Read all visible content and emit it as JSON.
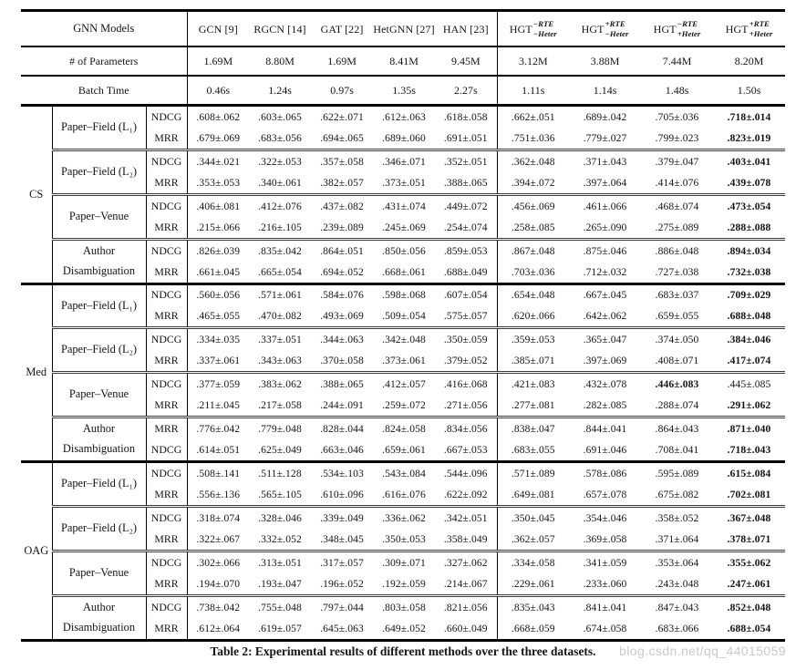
{
  "caption": "Table 2: Experimental results of different methods over the three datasets.",
  "watermark": "blog.csdn.net/qq_44015059",
  "table": {
    "corner_labels": {
      "models": "GNN Models",
      "params": "# of Parameters",
      "batch": "Batch Time"
    },
    "models": [
      {
        "label": "GCN [9]",
        "params": "1.69M",
        "batch": "0.46s"
      },
      {
        "label": "RGCN [14]",
        "params": "8.80M",
        "batch": "1.24s"
      },
      {
        "label": "GAT [22]",
        "params": "1.69M",
        "batch": "0.97s"
      },
      {
        "label": "HetGNN [27]",
        "params": "8.41M",
        "batch": "1.35s"
      },
      {
        "label": "HAN [23]",
        "params": "9.45M",
        "batch": "2.27s"
      },
      {
        "label": "HGT",
        "sup": "−RTE",
        "sub": "−Heter",
        "params": "3.12M",
        "batch": "1.11s"
      },
      {
        "label": "HGT",
        "sup": "+RTE",
        "sub": "−Heter",
        "params": "3.88M",
        "batch": "1.14s"
      },
      {
        "label": "HGT",
        "sup": "−RTE",
        "sub": "+Heter",
        "params": "7.44M",
        "batch": "1.48s"
      },
      {
        "label": "HGT",
        "sup": "+RTE",
        "sub": "+Heter",
        "params": "8.20M",
        "batch": "1.50s"
      }
    ],
    "groups": [
      {
        "dataset": "CS",
        "tasks": [
          {
            "label": "Paper–Field (L₁)",
            "metrics": [
              {
                "name": "NDCG",
                "bold": [
                  8
                ],
                "values": [
                  ".608±.062",
                  ".603±.065",
                  ".622±.071",
                  ".612±.063",
                  ".618±.058",
                  ".662±.051",
                  ".689±.042",
                  ".705±.036",
                  ".718±.014"
                ]
              },
              {
                "name": "MRR",
                "bold": [
                  8
                ],
                "values": [
                  ".679±.069",
                  ".683±.056",
                  ".694±.065",
                  ".689±.060",
                  ".691±.051",
                  ".751±.036",
                  ".779±.027",
                  ".799±.023",
                  ".823±.019"
                ]
              }
            ]
          },
          {
            "label": "Paper–Field (L₂)",
            "metrics": [
              {
                "name": "NDCG",
                "bold": [
                  8
                ],
                "values": [
                  ".344±.021",
                  ".322±.053",
                  ".357±.058",
                  ".346±.071",
                  ".352±.051",
                  ".362±.048",
                  ".371±.043",
                  ".379±.047",
                  ".403±.041"
                ]
              },
              {
                "name": "MRR",
                "bold": [
                  8
                ],
                "values": [
                  ".353±.053",
                  ".340±.061",
                  ".382±.057",
                  ".373±.051",
                  ".388±.065",
                  ".394±.072",
                  ".397±.064",
                  ".414±.076",
                  ".439±.078"
                ]
              }
            ]
          },
          {
            "label": "Paper–Venue",
            "metrics": [
              {
                "name": "NDCG",
                "bold": [
                  8
                ],
                "values": [
                  ".406±.081",
                  ".412±.076",
                  ".437±.082",
                  ".431±.074",
                  ".449±.072",
                  ".456±.069",
                  ".461±.066",
                  ".468±.074",
                  ".473±.054"
                ]
              },
              {
                "name": "MRR",
                "bold": [
                  8
                ],
                "values": [
                  ".215±.066",
                  ".216±.105",
                  ".239±.089",
                  ".245±.069",
                  ".254±.074",
                  ".258±.085",
                  ".265±.090",
                  ".275±.089",
                  ".288±.088"
                ]
              }
            ]
          },
          {
            "label": "Author\nDisambiguation",
            "metrics": [
              {
                "name": "NDCG",
                "bold": [
                  8
                ],
                "values": [
                  ".826±.039",
                  ".835±.042",
                  ".864±.051",
                  ".850±.056",
                  ".859±.053",
                  ".867±.048",
                  ".875±.046",
                  ".886±.048",
                  ".894±.034"
                ]
              },
              {
                "name": "MRR",
                "bold": [
                  8
                ],
                "values": [
                  ".661±.045",
                  ".665±.054",
                  ".694±.052",
                  ".668±.061",
                  ".688±.049",
                  ".703±.036",
                  ".712±.032",
                  ".727±.038",
                  ".732±.038"
                ]
              }
            ]
          }
        ]
      },
      {
        "dataset": "Med",
        "tasks": [
          {
            "label": "Paper–Field (L₁)",
            "metrics": [
              {
                "name": "NDCG",
                "bold": [
                  8
                ],
                "values": [
                  ".560±.056",
                  ".571±.061",
                  ".584±.076",
                  ".598±.068",
                  ".607±.054",
                  ".654±.048",
                  ".667±.045",
                  ".683±.037",
                  ".709±.029"
                ]
              },
              {
                "name": "MRR",
                "bold": [
                  8
                ],
                "values": [
                  ".465±.055",
                  ".470±.082",
                  ".493±.069",
                  ".509±.054",
                  ".575±.057",
                  ".620±.066",
                  ".642±.062",
                  ".659±.055",
                  ".688±.048"
                ]
              }
            ]
          },
          {
            "label": "Paper–Field (L₂)",
            "metrics": [
              {
                "name": "NDCG",
                "bold": [
                  8
                ],
                "values": [
                  ".334±.035",
                  ".337±.051",
                  ".344±.063",
                  ".342±.048",
                  ".350±.059",
                  ".359±.053",
                  ".365±.047",
                  ".374±.050",
                  ".384±.046"
                ]
              },
              {
                "name": "MRR",
                "bold": [
                  8
                ],
                "values": [
                  ".337±.061",
                  ".343±.063",
                  ".370±.058",
                  ".373±.061",
                  ".379±.052",
                  ".385±.071",
                  ".397±.069",
                  ".408±.071",
                  ".417±.074"
                ]
              }
            ]
          },
          {
            "label": "Paper–Venue",
            "metrics": [
              {
                "name": "NDCG",
                "bold": [
                  7
                ],
                "values": [
                  ".377±.059",
                  ".383±.062",
                  ".388±.065",
                  ".412±.057",
                  ".416±.068",
                  ".421±.083",
                  ".432±.078",
                  ".446±.083",
                  ".445±.085"
                ]
              },
              {
                "name": "MRR",
                "bold": [
                  8
                ],
                "values": [
                  ".211±.045",
                  ".217±.058",
                  ".244±.091",
                  ".259±.072",
                  ".271±.056",
                  ".277±.081",
                  ".282±.085",
                  ".288±.074",
                  ".291±.062"
                ]
              }
            ]
          },
          {
            "label": "Author\nDisambiguation",
            "metrics": [
              {
                "name": "MRR",
                "bold": [
                  8
                ],
                "values": [
                  ".776±.042",
                  ".779±.048",
                  ".828±.044",
                  ".824±.058",
                  ".834±.056",
                  ".838±.047",
                  ".844±.041",
                  ".864±.043",
                  ".871±.040"
                ]
              },
              {
                "name": "NDCG",
                "bold": [
                  8
                ],
                "values": [
                  ".614±.051",
                  ".625±.049",
                  ".663±.046",
                  ".659±.061",
                  ".667±.053",
                  ".683±.055",
                  ".691±.046",
                  ".708±.041",
                  ".718±.043"
                ]
              }
            ]
          }
        ]
      },
      {
        "dataset": "OAG",
        "tasks": [
          {
            "label": "Paper–Field (L₁)",
            "metrics": [
              {
                "name": "NDCG",
                "bold": [
                  8
                ],
                "values": [
                  ".508±.141",
                  ".511±.128",
                  ".534±.103",
                  ".543±.084",
                  ".544±.096",
                  ".571±.089",
                  ".578±.086",
                  ".595±.089",
                  ".615±.084"
                ]
              },
              {
                "name": "MRR",
                "bold": [
                  8
                ],
                "values": [
                  ".556±.136",
                  ".565±.105",
                  ".610±.096",
                  ".616±.076",
                  ".622±.092",
                  ".649±.081",
                  ".657±.078",
                  ".675±.082",
                  ".702±.081"
                ]
              }
            ]
          },
          {
            "label": "Paper–Field (L₂)",
            "metrics": [
              {
                "name": "NDCG",
                "bold": [
                  8
                ],
                "values": [
                  ".318±.074",
                  ".328±.046",
                  ".339±.049",
                  ".336±.062",
                  ".342±.051",
                  ".350±.045",
                  ".354±.046",
                  ".358±.052",
                  ".367±.048"
                ]
              },
              {
                "name": "MRR",
                "bold": [
                  8
                ],
                "values": [
                  ".322±.067",
                  ".332±.052",
                  ".348±.045",
                  ".350±.053",
                  ".358±.049",
                  ".362±.057",
                  ".369±.058",
                  ".371±.064",
                  ".378±.071"
                ]
              }
            ]
          },
          {
            "label": "Paper–Venue",
            "metrics": [
              {
                "name": "NDCG",
                "bold": [
                  8
                ],
                "values": [
                  ".302±.066",
                  ".313±.051",
                  ".317±.057",
                  ".309±.071",
                  ".327±.062",
                  ".334±.058",
                  ".341±.059",
                  ".353±.064",
                  ".355±.062"
                ]
              },
              {
                "name": "MRR",
                "bold": [
                  8
                ],
                "values": [
                  ".194±.070",
                  ".193±.047",
                  ".196±.052",
                  ".192±.059",
                  ".214±.067",
                  ".229±.061",
                  ".233±.060",
                  ".243±.048",
                  ".247±.061"
                ]
              }
            ]
          },
          {
            "label": "Author\nDisambiguation",
            "metrics": [
              {
                "name": "NDCG",
                "bold": [
                  8
                ],
                "values": [
                  ".738±.042",
                  ".755±.048",
                  ".797±.044",
                  ".803±.058",
                  ".821±.056",
                  ".835±.043",
                  ".841±.041",
                  ".847±.043",
                  ".852±.048"
                ]
              },
              {
                "name": "MRR",
                "bold": [
                  8
                ],
                "values": [
                  ".612±.064",
                  ".619±.057",
                  ".645±.063",
                  ".649±.052",
                  ".660±.049",
                  ".668±.059",
                  ".674±.058",
                  ".683±.066",
                  ".688±.054"
                ]
              }
            ]
          }
        ]
      }
    ]
  }
}
